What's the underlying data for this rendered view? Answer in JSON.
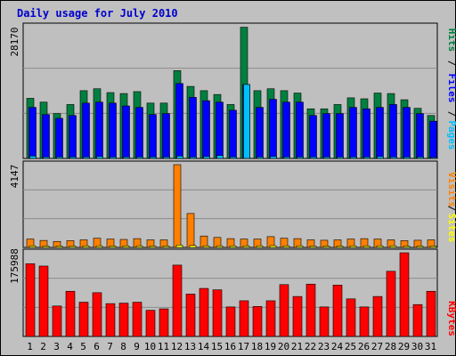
{
  "chart_data": [
    {
      "type": "bar",
      "title": "Daily usage for July 2010",
      "categories": [
        "1",
        "2",
        "3",
        "4",
        "5",
        "6",
        "7",
        "8",
        "9",
        "10",
        "11",
        "12",
        "13",
        "14",
        "15",
        "16",
        "17",
        "18",
        "19",
        "20",
        "21",
        "22",
        "23",
        "24",
        "25",
        "26",
        "27",
        "28",
        "29",
        "30",
        "31"
      ],
      "weekend_days": [
        "3",
        "4",
        "10",
        "11",
        "17",
        "18",
        "24",
        "25",
        "31"
      ],
      "highlight_day": "17",
      "ylabel_max": "28170",
      "ylim": [
        0,
        28170
      ],
      "grid": true,
      "legend_labels": [
        "Pages",
        "Files",
        "Hits"
      ],
      "series": [
        {
          "name": "Hits",
          "color": "#008040",
          "values": [
            12600,
            11800,
            9400,
            11300,
            14200,
            14600,
            13800,
            13600,
            14000,
            11600,
            11600,
            18400,
            15100,
            14200,
            13400,
            11300,
            27500,
            14200,
            14600,
            14200,
            13700,
            10400,
            10400,
            11300,
            12700,
            12500,
            13700,
            13600,
            12300,
            10500,
            9000
          ]
        },
        {
          "name": "Files",
          "color": "#0000ff",
          "values": [
            10700,
            9200,
            8400,
            9000,
            11600,
            11800,
            11600,
            11000,
            10700,
            9200,
            9400,
            15700,
            12800,
            12100,
            11800,
            10100,
            15500,
            10700,
            12400,
            11800,
            11800,
            9000,
            9400,
            9400,
            10700,
            10400,
            10700,
            11300,
            10700,
            9400,
            7800
          ]
        },
        {
          "name": "Pages",
          "color": "#00c0ff",
          "values": [
            500,
            300,
            300,
            300,
            300,
            400,
            300,
            300,
            300,
            300,
            300,
            500,
            300,
            400,
            600,
            300,
            15500,
            300,
            400,
            300,
            300,
            300,
            300,
            300,
            300,
            300,
            400,
            300,
            300,
            300,
            200
          ]
        }
      ]
    },
    {
      "type": "bar",
      "ylabel_max": "4147",
      "ylim": [
        0,
        4147
      ],
      "grid": true,
      "legend_labels": [
        "Sites",
        "Visits"
      ],
      "series": [
        {
          "name": "Visits",
          "color": "#ff8000",
          "values": [
            420,
            350,
            300,
            340,
            380,
            460,
            420,
            400,
            440,
            380,
            380,
            4147,
            1700,
            570,
            500,
            440,
            420,
            420,
            540,
            460,
            440,
            380,
            360,
            380,
            420,
            440,
            420,
            380,
            340,
            360,
            380
          ]
        },
        {
          "name": "Sites",
          "color": "#ffff00",
          "values": [
            80,
            70,
            70,
            70,
            80,
            80,
            70,
            80,
            80,
            70,
            70,
            120,
            100,
            80,
            80,
            80,
            80,
            80,
            90,
            80,
            80,
            70,
            70,
            70,
            80,
            80,
            80,
            80,
            70,
            70,
            70
          ]
        }
      ]
    },
    {
      "type": "bar",
      "ylabel_max": "175988",
      "ylim": [
        0,
        175988
      ],
      "grid": true,
      "legend_labels": [
        "KBytes"
      ],
      "series": [
        {
          "name": "KBytes",
          "color": "#ff0000",
          "values": [
            153000,
            148000,
            64000,
            95000,
            72000,
            92000,
            69000,
            70000,
            72000,
            55000,
            58000,
            150000,
            89000,
            101000,
            98000,
            62000,
            75000,
            63000,
            75000,
            109000,
            84000,
            110000,
            62000,
            108000,
            79000,
            62000,
            84000,
            137000,
            175988,
            67000,
            95000
          ]
        }
      ]
    }
  ],
  "colors": {
    "background": "#c0c0c0",
    "panel": "#bfbfbf",
    "border": "#000000",
    "legend_pages": "#00c0ff",
    "legend_files": "#0000ff",
    "legend_hits": "#008040",
    "legend_sites": "#ffff00",
    "legend_visits": "#ff8000",
    "legend_kbytes": "#ff0000",
    "weekend_tick": "#008040",
    "weekday_tick": "#000000"
  }
}
